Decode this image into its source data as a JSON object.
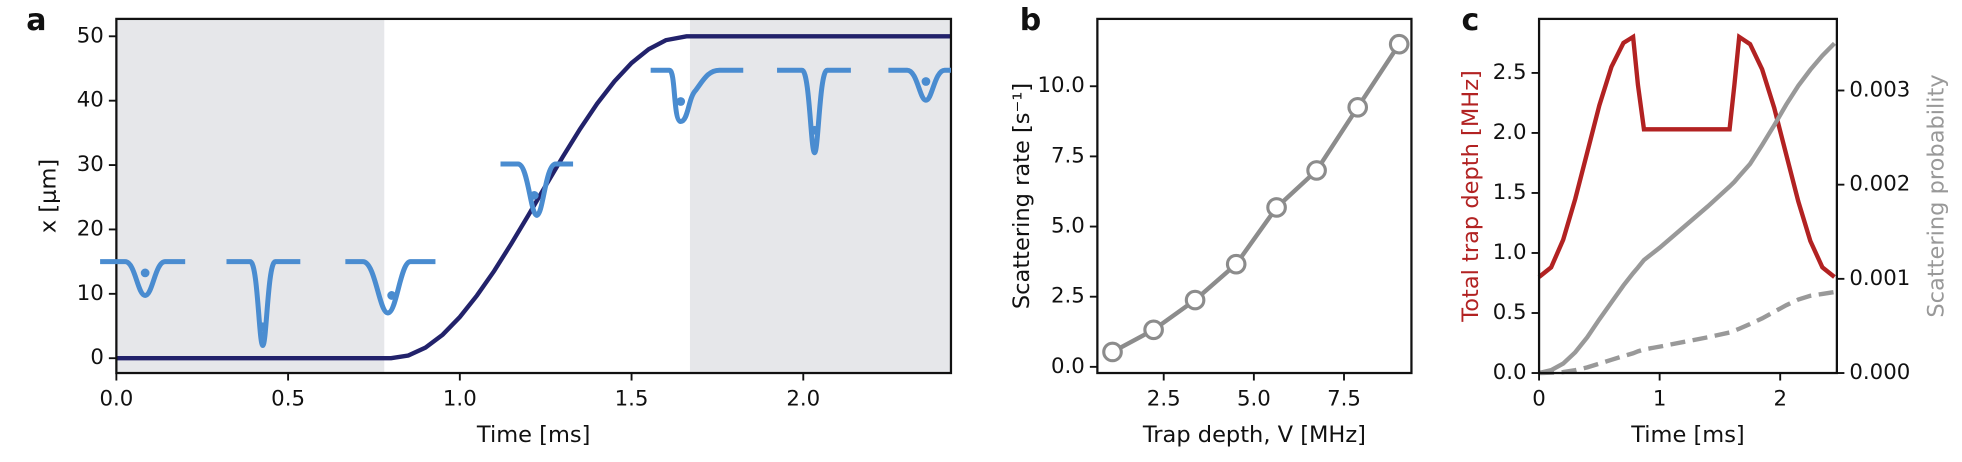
{
  "chart_data": [
    {
      "panel_label": "a",
      "type": "line",
      "xlabel": "Time [ms]",
      "ylabel": "x [μm]",
      "xlim": [
        0,
        2.43
      ],
      "ylim": [
        -2.3,
        52.7
      ],
      "xticks": [
        {
          "value": 0,
          "label": "0.0"
        },
        {
          "value": 0.5,
          "label": "0.5"
        },
        {
          "value": 1,
          "label": "1.0"
        },
        {
          "value": 1.5,
          "label": "1.5"
        },
        {
          "value": 2,
          "label": "2.0"
        }
      ],
      "yticks": [
        0,
        10,
        20,
        30,
        40,
        50
      ],
      "shaded_regions": [
        [
          0,
          0.78
        ],
        [
          1.67,
          2.43
        ]
      ],
      "shade_color": "#e6e7ea",
      "x": [
        0,
        0.8,
        0.85,
        0.9,
        0.95,
        1.0,
        1.05,
        1.1,
        1.15,
        1.2,
        1.25,
        1.3,
        1.35,
        1.4,
        1.45,
        1.5,
        1.55,
        1.6,
        1.66,
        2.43
      ],
      "series": [
        {
          "color": "#22226b",
          "values": [
            0,
            0,
            0.42,
            1.65,
            3.65,
            6.4,
            9.75,
            13.55,
            17.8,
            22.25,
            26.8,
            31.3,
            35.6,
            39.55,
            43.0,
            45.85,
            48.0,
            49.4,
            50,
            50
          ]
        }
      ]
    },
    {
      "panel_label": "b",
      "type": "line",
      "markers": true,
      "xlabel": "Trap depth, V [MHz]",
      "ylabel": "Scattering rate [s⁻¹]",
      "xlim": [
        0.66,
        9.37
      ],
      "ylim": [
        -0.22,
        12.4
      ],
      "xticks": [
        {
          "value": 2.5,
          "label": "2.5"
        },
        {
          "value": 5,
          "label": "5.0"
        },
        {
          "value": 7.5,
          "label": "7.5"
        }
      ],
      "yticks": [
        {
          "value": 0,
          "label": "0.0"
        },
        {
          "value": 2.5,
          "label": "2.5"
        },
        {
          "value": 5,
          "label": "5.0"
        },
        {
          "value": 7.5,
          "label": "7.5"
        },
        {
          "value": 10,
          "label": "10.0"
        }
      ],
      "x": [
        1.08,
        2.22,
        3.37,
        4.51,
        5.63,
        6.74,
        7.88,
        9.03
      ],
      "series": [
        {
          "color": "#8c8c8c",
          "values": [
            0.53,
            1.32,
            2.38,
            3.66,
            5.68,
            7.0,
            9.25,
            11.5
          ]
        }
      ]
    },
    {
      "panel_label": "c",
      "type": "line",
      "xlabel": "Time [ms]",
      "ylabel": "Total trap depth [MHz]",
      "ylabel_color": "#b22222",
      "y2label": "Scattering probability",
      "y2label_color": "#999999",
      "xlim": [
        0,
        2.47
      ],
      "ylim": [
        0,
        2.95
      ],
      "y2lim": [
        0,
        0.00376
      ],
      "xticks": [
        0,
        1,
        2
      ],
      "yticks": [
        {
          "value": 0,
          "label": "0.0"
        },
        {
          "value": 0.5,
          "label": "0.5"
        },
        {
          "value": 1,
          "label": "1.0"
        },
        {
          "value": 1.5,
          "label": "1.5"
        },
        {
          "value": 2,
          "label": "2.0"
        },
        {
          "value": 2.5,
          "label": "2.5"
        }
      ],
      "y2ticks": [
        {
          "value": 0,
          "label": "0.000"
        },
        {
          "value": 0.001,
          "label": "0.001"
        },
        {
          "value": 0.002,
          "label": "0.002"
        },
        {
          "value": 0.003,
          "label": "0.003"
        }
      ],
      "x": [
        0,
        0.1,
        0.2,
        0.3,
        0.4,
        0.5,
        0.6,
        0.7,
        0.78,
        0.82,
        0.87,
        1.0,
        1.2,
        1.4,
        1.58,
        1.62,
        1.66,
        1.75,
        1.85,
        1.95,
        2.05,
        2.15,
        2.25,
        2.35,
        2.45
      ],
      "series": [
        {
          "color": "#b22222",
          "values": [
            0.8,
            0.88,
            1.11,
            1.45,
            1.84,
            2.23,
            2.55,
            2.75,
            2.8,
            2.4,
            2.03,
            2.03,
            2.03,
            2.03,
            2.03,
            2.4,
            2.8,
            2.74,
            2.53,
            2.21,
            1.82,
            1.43,
            1.1,
            0.88,
            0.8
          ]
        },
        {
          "color": "#999999",
          "axis": "y2",
          "values": [
            0,
            3e-05,
            0.0001,
            0.00022,
            0.00038,
            0.00057,
            0.00075,
            0.00093,
            0.00106,
            0.00112,
            0.0012,
            0.00133,
            0.00155,
            0.00177,
            0.00198,
            0.00203,
            0.00209,
            0.00222,
            0.00242,
            0.00263,
            0.00285,
            0.00305,
            0.00322,
            0.00337,
            0.0035
          ]
        },
        {
          "color": "#999999",
          "axis": "y2",
          "linestyle": "dashed",
          "values": [
            0,
            3e-06,
            1e-05,
            3e-05,
            6e-05,
            0.0001,
            0.00014,
            0.00018,
            0.00021,
            0.00023,
            0.00025,
            0.00028,
            0.00033,
            0.00038,
            0.00043,
            0.00045,
            0.00047,
            0.00052,
            0.00058,
            0.00065,
            0.00072,
            0.00078,
            0.00082,
            0.00084,
            0.00086
          ]
        }
      ]
    }
  ]
}
